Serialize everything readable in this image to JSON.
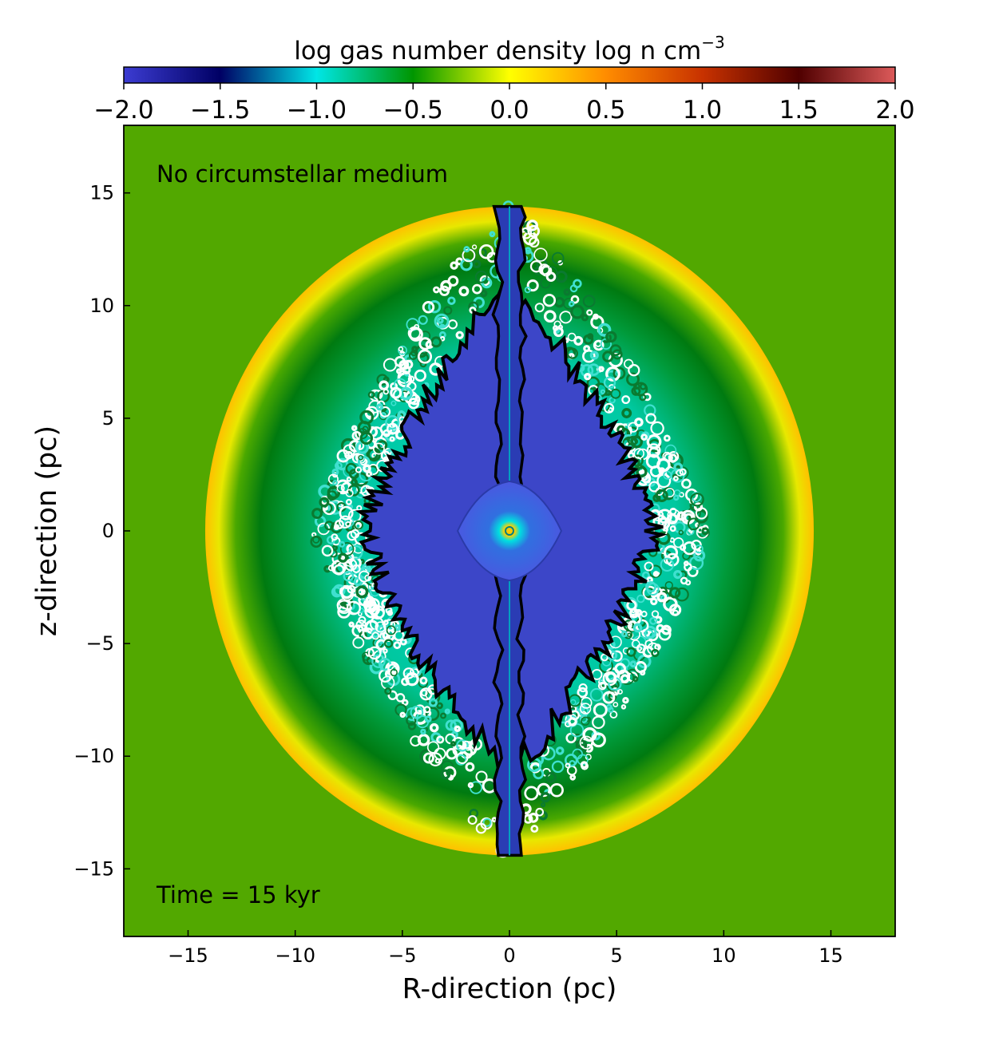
{
  "chart_data": {
    "type": "heatmap",
    "colorbar": {
      "label": "log gas number density log n cm",
      "label_exponent": "−3",
      "range": [
        -2.0,
        2.0
      ],
      "ticks": [
        -2.0,
        -1.5,
        -1.0,
        -0.5,
        0.0,
        0.5,
        1.0,
        1.5,
        2.0
      ],
      "tick_labels": [
        "−2.0",
        "−1.5",
        "−1.0",
        "−0.5",
        "0.0",
        "0.5",
        "1.0",
        "1.5",
        "2.0"
      ],
      "placement": "top",
      "colors": [
        "#3c3cd2",
        "#000064",
        "#00e6e6",
        "#009600",
        "#ffff00",
        "#ff8c00",
        "#c83200",
        "#500000",
        "#dc5a5a"
      ]
    },
    "xlabel": "R-direction (pc)",
    "ylabel": "z-direction (pc)",
    "xlim": [
      -18,
      18
    ],
    "ylim": [
      -18,
      18
    ],
    "xticks": [
      -15,
      -10,
      -5,
      0,
      5,
      10,
      15
    ],
    "xtick_labels": [
      "−15",
      "−10",
      "−5",
      "0",
      "5",
      "10",
      "15"
    ],
    "yticks": [
      -15,
      -10,
      -5,
      0,
      5,
      10,
      15
    ],
    "ytick_labels": [
      "−15",
      "−10",
      "−5",
      "0",
      "5",
      "10",
      "15"
    ],
    "annotations": {
      "top_left": "No circumstellar medium",
      "bottom_left": "Time = 15 kyr"
    },
    "field": {
      "ambient_log_density": 0.0,
      "outer_shell_radius_R": 14.2,
      "outer_shell_radius_z": 14.4,
      "shell_log_density": 0.5,
      "cavity_log_density": -1.6,
      "bipolar_jet_extent_z": 14.4,
      "inner_bubble_radius": 2.2
    },
    "grid": false,
    "legend": "none"
  }
}
